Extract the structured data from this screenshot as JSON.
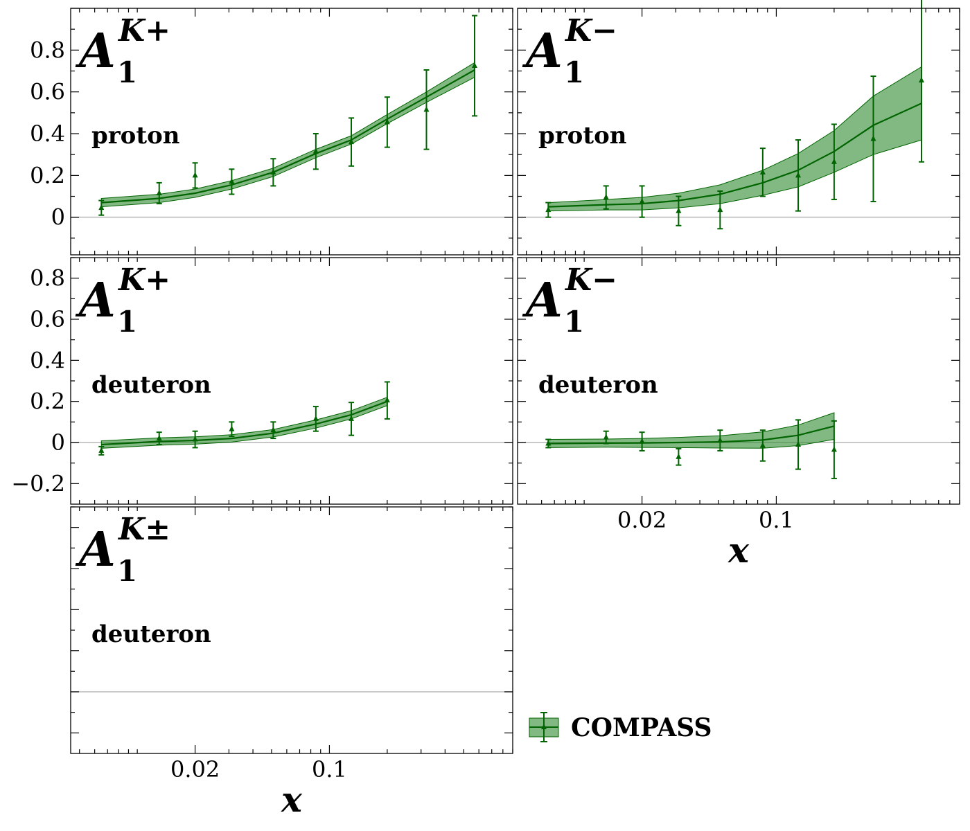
{
  "colors": {
    "line": "#006400",
    "band": "#2e8b2e",
    "zero_line": "#c8c8c8"
  },
  "legend": {
    "label": "COMPASS"
  },
  "x_axis": {
    "label": "x",
    "scale": "log",
    "range": [
      0.0045,
      0.9
    ],
    "tick_labels": [
      {
        "value": 0.02,
        "label": "0.02"
      },
      {
        "value": 0.1,
        "label": "0.1"
      }
    ]
  },
  "chart_data": [
    {
      "type": "line",
      "asymmetry": "A",
      "subscript": "1",
      "superscript": "K+",
      "target": "proton",
      "ylim": [
        -0.18,
        1.0
      ],
      "y_tick_labels": [
        "0",
        "0.2",
        "0.4",
        "0.6",
        "0.8"
      ],
      "y_ticks": [
        0,
        0.2,
        0.4,
        0.6,
        0.8
      ],
      "curve": {
        "x": [
          0.0065,
          0.013,
          0.02,
          0.031,
          0.051,
          0.085,
          0.13,
          0.2,
          0.32,
          0.57
        ],
        "y": [
          0.07,
          0.09,
          0.115,
          0.155,
          0.215,
          0.305,
          0.37,
          0.47,
          0.575,
          0.705
        ],
        "band": [
          0.02,
          0.02,
          0.02,
          0.02,
          0.02,
          0.02,
          0.02,
          0.022,
          0.025,
          0.035
        ]
      },
      "points": {
        "x": [
          0.0065,
          0.013,
          0.02,
          0.031,
          0.051,
          0.085,
          0.13,
          0.2,
          0.32,
          0.57
        ],
        "y": [
          0.045,
          0.115,
          0.2,
          0.17,
          0.215,
          0.315,
          0.36,
          0.455,
          0.515,
          0.725
        ],
        "err": [
          0.035,
          0.05,
          0.06,
          0.06,
          0.065,
          0.085,
          0.115,
          0.12,
          0.19,
          0.24
        ]
      }
    },
    {
      "type": "line",
      "asymmetry": "A",
      "subscript": "1",
      "superscript": "K−",
      "target": "proton",
      "ylim": [
        -0.18,
        1.0
      ],
      "y_tick_labels": [],
      "y_ticks": [
        0,
        0.2,
        0.4,
        0.6,
        0.8
      ],
      "curve": {
        "x": [
          0.0065,
          0.013,
          0.02,
          0.031,
          0.051,
          0.085,
          0.13,
          0.2,
          0.32,
          0.57
        ],
        "y": [
          0.05,
          0.06,
          0.065,
          0.08,
          0.11,
          0.165,
          0.225,
          0.315,
          0.44,
          0.545
        ],
        "band": [
          0.02,
          0.025,
          0.03,
          0.035,
          0.045,
          0.06,
          0.08,
          0.1,
          0.14,
          0.175
        ]
      },
      "points": {
        "x": [
          0.0065,
          0.013,
          0.02,
          0.031,
          0.051,
          0.085,
          0.13,
          0.2,
          0.32,
          0.57
        ],
        "y": [
          0.035,
          0.095,
          0.075,
          0.03,
          0.035,
          0.215,
          0.2,
          0.265,
          0.375,
          0.655
        ],
        "err": [
          0.035,
          0.055,
          0.075,
          0.07,
          0.09,
          0.115,
          0.17,
          0.18,
          0.3,
          0.39
        ]
      }
    },
    {
      "type": "line",
      "asymmetry": "A",
      "subscript": "1",
      "superscript": "K+",
      "target": "deuteron",
      "ylim": [
        -0.3,
        0.9
      ],
      "y_tick_labels": [
        "−0.2",
        "0",
        "0.2",
        "0.4",
        "0.6",
        "0.8"
      ],
      "y_ticks": [
        -0.2,
        0,
        0.2,
        0.4,
        0.6,
        0.8
      ],
      "curve": {
        "x": [
          0.0065,
          0.013,
          0.02,
          0.031,
          0.051,
          0.085,
          0.13,
          0.2
        ],
        "y": [
          -0.01,
          0.005,
          0.01,
          0.02,
          0.045,
          0.09,
          0.135,
          0.2
        ],
        "band": [
          0.018,
          0.018,
          0.018,
          0.018,
          0.018,
          0.02,
          0.02,
          0.02
        ]
      },
      "points": {
        "x": [
          0.0065,
          0.013,
          0.02,
          0.031,
          0.051,
          0.085,
          0.13,
          0.2
        ],
        "y": [
          -0.04,
          0.02,
          0.015,
          0.065,
          0.06,
          0.115,
          0.115,
          0.205
        ],
        "err": [
          0.02,
          0.03,
          0.04,
          0.035,
          0.04,
          0.06,
          0.08,
          0.09
        ]
      }
    },
    {
      "type": "line",
      "asymmetry": "A",
      "subscript": "1",
      "superscript": "K−",
      "target": "deuteron",
      "ylim": [
        -0.3,
        0.9
      ],
      "y_tick_labels": [],
      "y_ticks": [
        -0.2,
        0,
        0.2,
        0.4,
        0.6,
        0.8
      ],
      "curve": {
        "x": [
          0.0065,
          0.013,
          0.02,
          0.031,
          0.051,
          0.085,
          0.13,
          0.2
        ],
        "y": [
          -0.005,
          -0.003,
          -0.002,
          0.0,
          0.003,
          0.012,
          0.035,
          0.08
        ],
        "band": [
          0.02,
          0.02,
          0.022,
          0.025,
          0.03,
          0.04,
          0.05,
          0.065
        ]
      },
      "points": {
        "x": [
          0.0065,
          0.013,
          0.02,
          0.031,
          0.051,
          0.085,
          0.13,
          0.2
        ],
        "y": [
          -0.005,
          0.025,
          0.005,
          -0.07,
          0.01,
          -0.015,
          -0.01,
          -0.035
        ],
        "err": [
          0.02,
          0.03,
          0.045,
          0.04,
          0.05,
          0.075,
          0.12,
          0.14
        ]
      }
    },
    {
      "type": "line",
      "asymmetry": "A",
      "subscript": "1",
      "superscript": "K±",
      "target": "deuteron",
      "ylim": [
        -0.3,
        0.9
      ],
      "y_tick_labels": [],
      "y_ticks": [
        -0.2,
        0,
        0.2,
        0.4,
        0.6,
        0.8
      ],
      "curve": {
        "x": [],
        "y": [],
        "band": []
      },
      "points": {
        "x": [],
        "y": [],
        "err": []
      }
    }
  ]
}
